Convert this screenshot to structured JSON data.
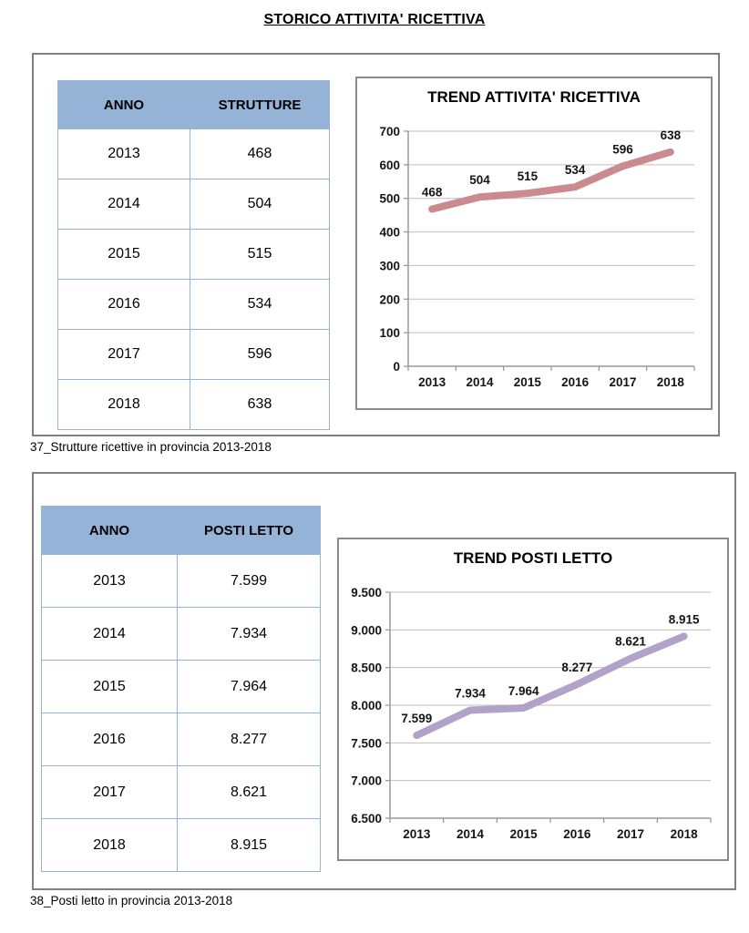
{
  "page": {
    "title": "STORICO ATTIVITA' RICETTIVA"
  },
  "captions": {
    "strutture": "37_Strutture ricettive in provincia 2013-2018",
    "posti_letto": "38_Posti letto in provincia 2013-2018"
  },
  "tables": [
    {
      "headers": [
        "ANNO",
        "STRUTTURE"
      ],
      "rows": [
        [
          "2013",
          "468"
        ],
        [
          "2014",
          "504"
        ],
        [
          "2015",
          "515"
        ],
        [
          "2016",
          "534"
        ],
        [
          "2017",
          "596"
        ],
        [
          "2018",
          "638"
        ]
      ]
    },
    {
      "headers": [
        "ANNO",
        "POSTI LETTO"
      ],
      "rows": [
        [
          "2013",
          "7.599"
        ],
        [
          "2014",
          "7.934"
        ],
        [
          "2015",
          "7.964"
        ],
        [
          "2016",
          "8.277"
        ],
        [
          "2017",
          "8.621"
        ],
        [
          "2018",
          "8.915"
        ]
      ]
    }
  ],
  "colors": {
    "table_header_bg": "#95B3D7",
    "table_border": "#95B3D7",
    "panel_border": "#7f7f7f",
    "gridline": "#bfbfbf",
    "axis": "#9a9a9a",
    "strutture_line": "#CB8A8E",
    "posti_letto_line": "#B2A2C7"
  },
  "chart_data": [
    {
      "type": "line",
      "title": "TREND ATTIVITA' RICETTIVA",
      "x": [
        "2013",
        "2014",
        "2015",
        "2016",
        "2017",
        "2018"
      ],
      "values": [
        468,
        504,
        515,
        534,
        596,
        638
      ],
      "labels": [
        "468",
        "504",
        "515",
        "534",
        "596",
        "638"
      ],
      "ylim": [
        0,
        700
      ],
      "y_ticks": [
        {
          "value": 0,
          "label": "0"
        },
        {
          "value": 100,
          "label": "100"
        },
        {
          "value": 200,
          "label": "200"
        },
        {
          "value": 300,
          "label": "300"
        },
        {
          "value": 400,
          "label": "400"
        },
        {
          "value": 500,
          "label": "500"
        },
        {
          "value": 600,
          "label": "600"
        },
        {
          "value": 700,
          "label": "700"
        }
      ],
      "line_color": "#CB8A8E",
      "grid": true,
      "legend": false,
      "xlabel": "",
      "ylabel": ""
    },
    {
      "type": "line",
      "title": "TREND POSTI LETTO",
      "x": [
        "2013",
        "2014",
        "2015",
        "2016",
        "2017",
        "2018"
      ],
      "values": [
        7599,
        7934,
        7964,
        8277,
        8621,
        8915
      ],
      "labels": [
        "7.599",
        "7.934",
        "7.964",
        "8.277",
        "8.621",
        "8.915"
      ],
      "ylim": [
        6500,
        9500
      ],
      "y_ticks": [
        {
          "value": 6500,
          "label": "6.500"
        },
        {
          "value": 7000,
          "label": "7.000"
        },
        {
          "value": 7500,
          "label": "7.500"
        },
        {
          "value": 8000,
          "label": "8.000"
        },
        {
          "value": 8500,
          "label": "8.500"
        },
        {
          "value": 9000,
          "label": "9.000"
        },
        {
          "value": 9500,
          "label": "9.500"
        }
      ],
      "line_color": "#B2A2C7",
      "grid": true,
      "legend": false,
      "xlabel": "",
      "ylabel": ""
    }
  ]
}
